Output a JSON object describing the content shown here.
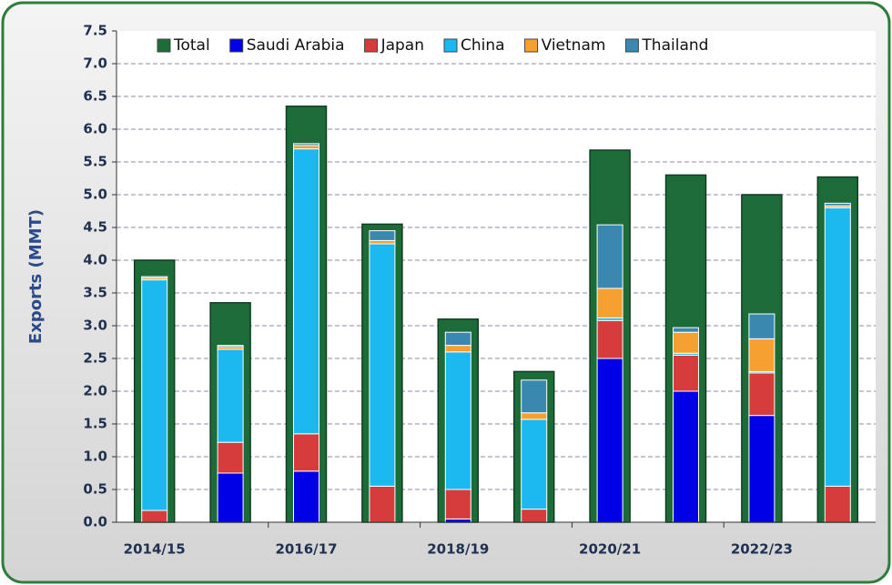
{
  "chart_data": {
    "type": "bar",
    "y_label": "Exports (MMT)",
    "categories": [
      "2014/15",
      null,
      "2016/17",
      null,
      "2018/19",
      null,
      "2020/21",
      null,
      "2022/23",
      null
    ],
    "series": [
      {
        "name": "Total",
        "color": "#1e6b3a",
        "values": [
          4.0,
          3.35,
          6.35,
          4.55,
          3.1,
          2.3,
          5.68,
          5.3,
          5.0,
          5.27
        ]
      },
      {
        "name": "Saudi Arabia",
        "color": "#0000e6",
        "values": [
          0,
          0.75,
          0.78,
          0,
          0.05,
          0,
          2.5,
          2.0,
          1.63,
          0
        ]
      },
      {
        "name": "Japan",
        "color": "#d63c3c",
        "values": [
          0.18,
          0.47,
          0.57,
          0.55,
          0.45,
          0.2,
          0.58,
          0.55,
          0.65,
          0.55
        ]
      },
      {
        "name": "China",
        "color": "#1cb8f0",
        "values": [
          3.52,
          1.42,
          4.35,
          3.7,
          2.1,
          1.37,
          0.04,
          0.03,
          0.02,
          4.25
        ]
      },
      {
        "name": "Vietnam",
        "color": "#f5a030",
        "values": [
          0.03,
          0.04,
          0.05,
          0.05,
          0.1,
          0.1,
          0.45,
          0.32,
          0.5,
          0.03
        ]
      },
      {
        "name": "Thailand",
        "color": "#3a88b0",
        "values": [
          0.02,
          0.02,
          0.03,
          0.15,
          0.2,
          0.5,
          0.97,
          0.07,
          0.38,
          0.04
        ]
      }
    ],
    "ylim": [
      0,
      7.5
    ],
    "yticks": [
      {
        "value": 0,
        "label": "0.0"
      },
      0.5,
      {
        "value": 1,
        "label": "1.0"
      },
      1.5,
      {
        "value": 2,
        "label": "2.0"
      },
      2.5,
      {
        "value": 3,
        "label": "3.0"
      },
      3.5,
      {
        "value": 4,
        "label": "4.0"
      },
      4.5,
      {
        "value": 5,
        "label": "5.0"
      },
      5.5,
      {
        "value": 6,
        "label": "6.0"
      },
      6.5,
      {
        "value": 7,
        "label": "7.0"
      },
      7.5
    ],
    "grid": true,
    "legend": "top"
  }
}
